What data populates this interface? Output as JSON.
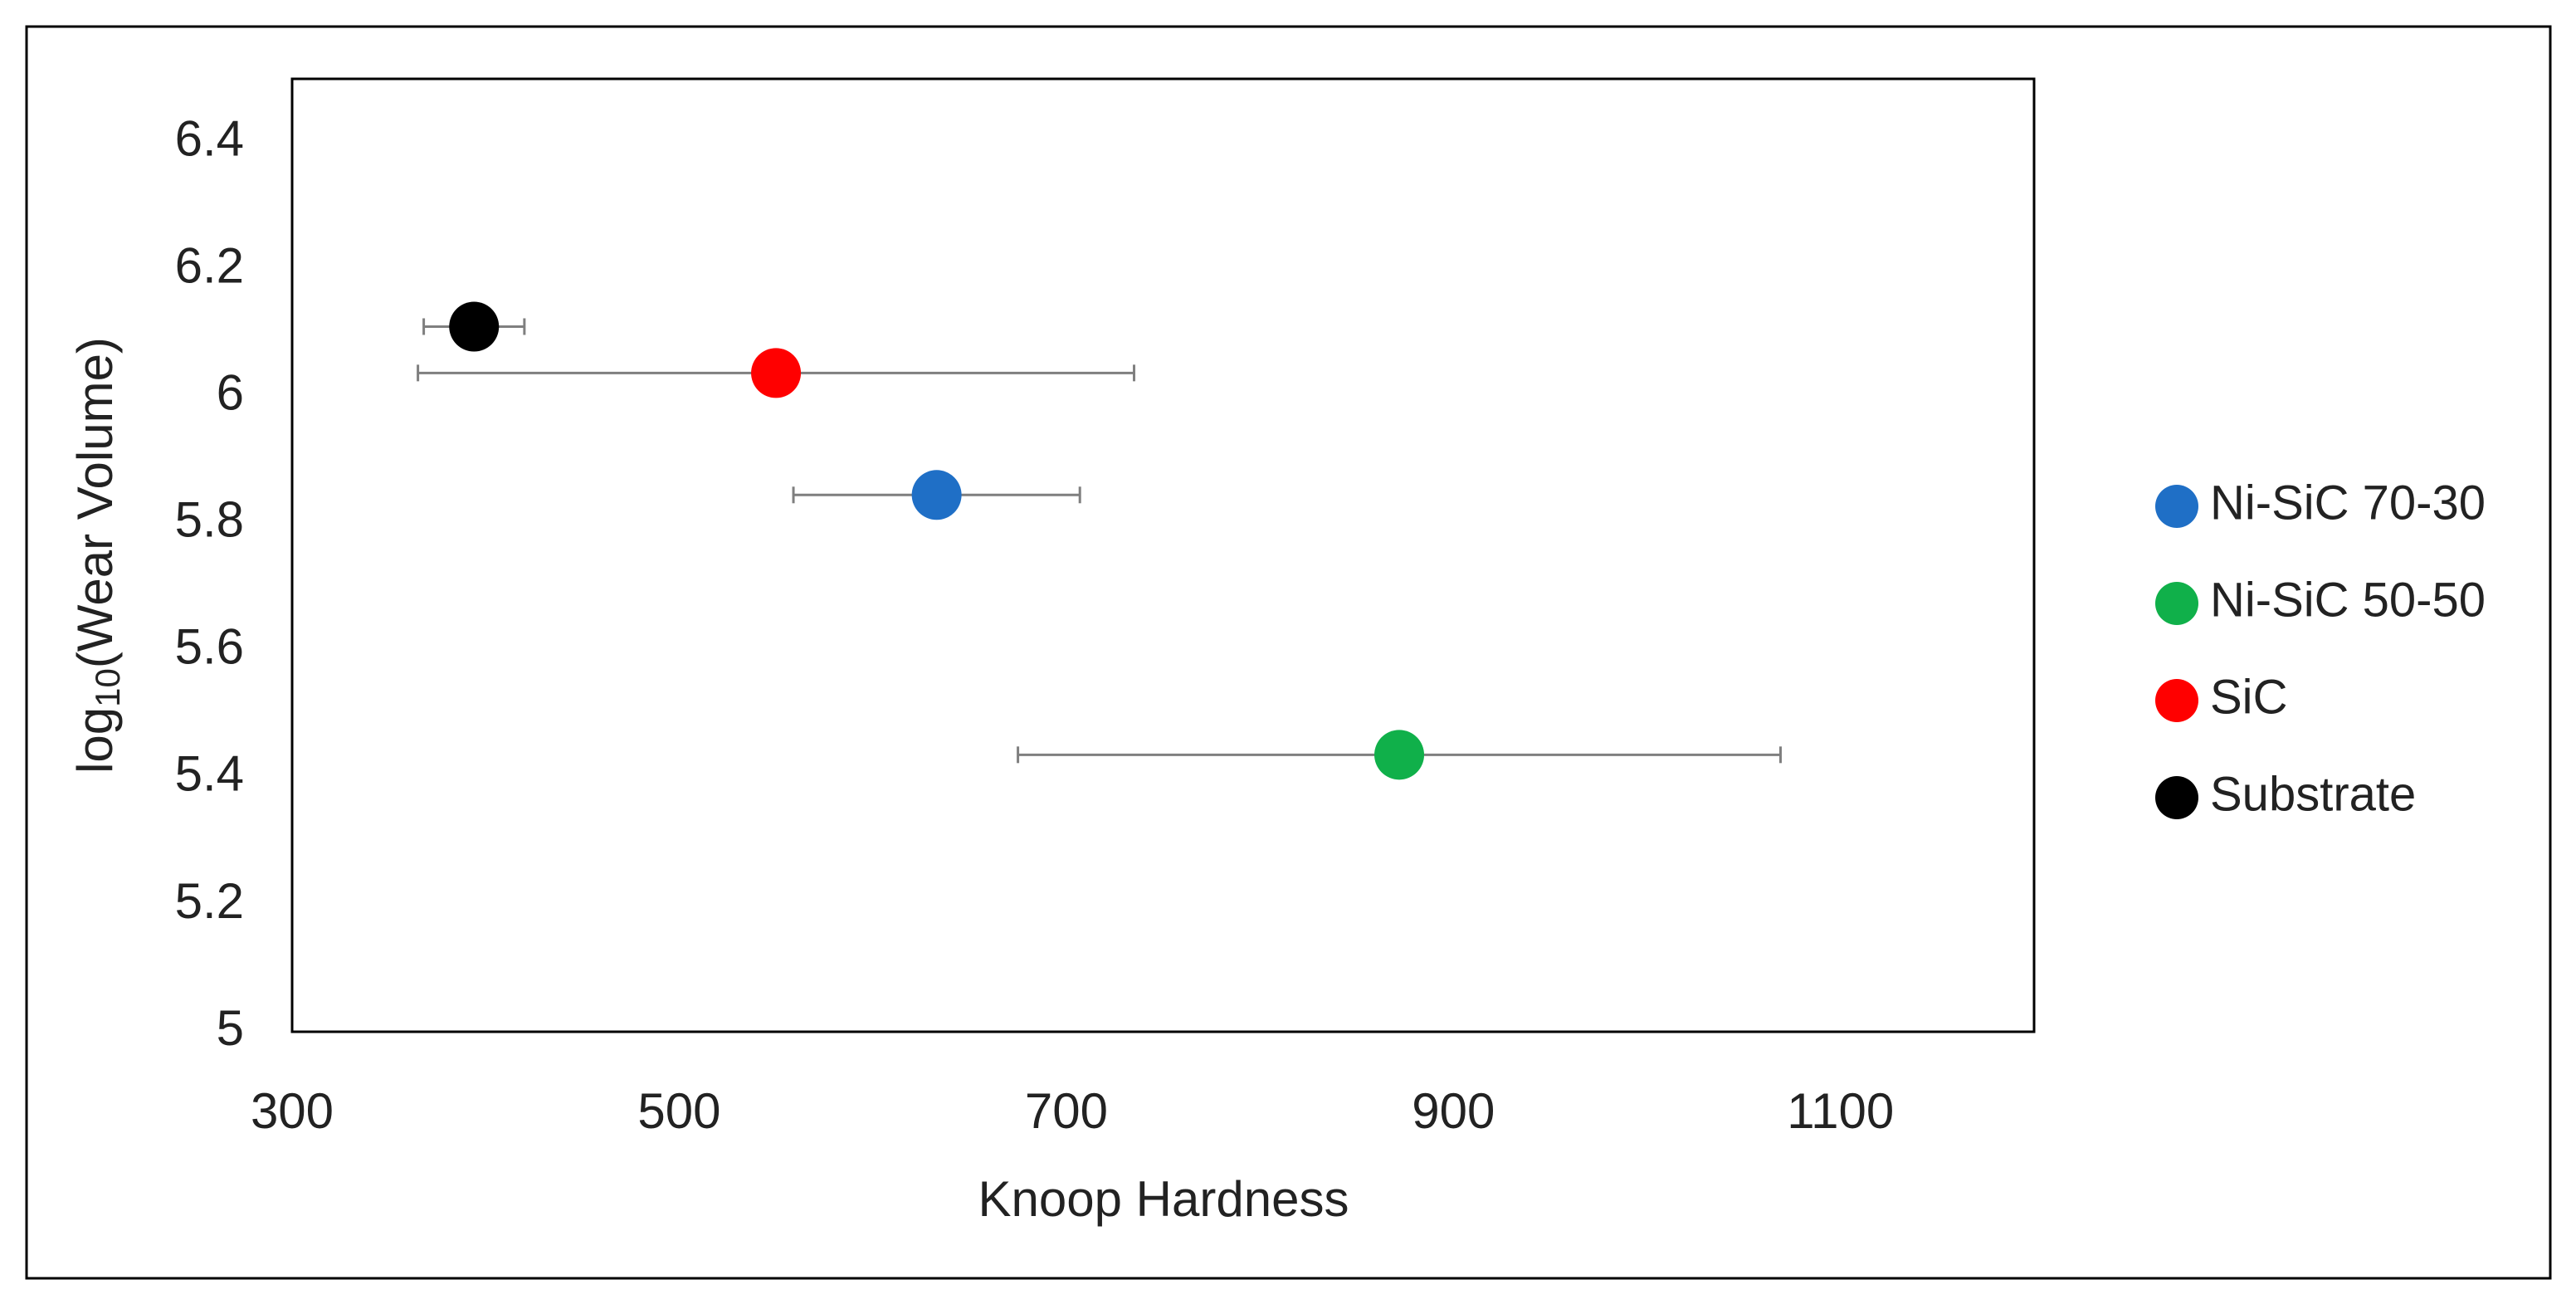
{
  "chart_data": {
    "type": "scatter",
    "x_label": "Knoop Hardness",
    "y_label": {
      "base": "log",
      "subscript": "10",
      "rest": "(Wear Volume)"
    },
    "xlim": [
      300,
      1200
    ],
    "xticks": [
      300,
      500,
      700,
      900,
      1100
    ],
    "ylim": [
      5,
      6.5
    ],
    "yticks": [
      5,
      5.2,
      5.4,
      5.6,
      5.8,
      6,
      6.2,
      6.4
    ],
    "grid": false,
    "legend": "right",
    "error_color": "#7f7f7f",
    "series": [
      {
        "name": "Ni-SiC 70-30",
        "color": "#1f6fc6",
        "x": [
          633
        ],
        "values": [
          5.845
        ],
        "xerr": [
          74
        ]
      },
      {
        "name": "Ni-SiC 50-50",
        "color": "#10b04a",
        "x": [
          872
        ],
        "values": [
          5.436
        ],
        "xerr": [
          197
        ]
      },
      {
        "name": "SiC",
        "color": "#ff0000",
        "x": [
          550
        ],
        "values": [
          6.037
        ],
        "xerr": [
          185
        ]
      },
      {
        "name": "Substrate",
        "color": "#000000",
        "x": [
          394
        ],
        "values": [
          6.11
        ],
        "xerr": [
          26
        ]
      }
    ]
  }
}
